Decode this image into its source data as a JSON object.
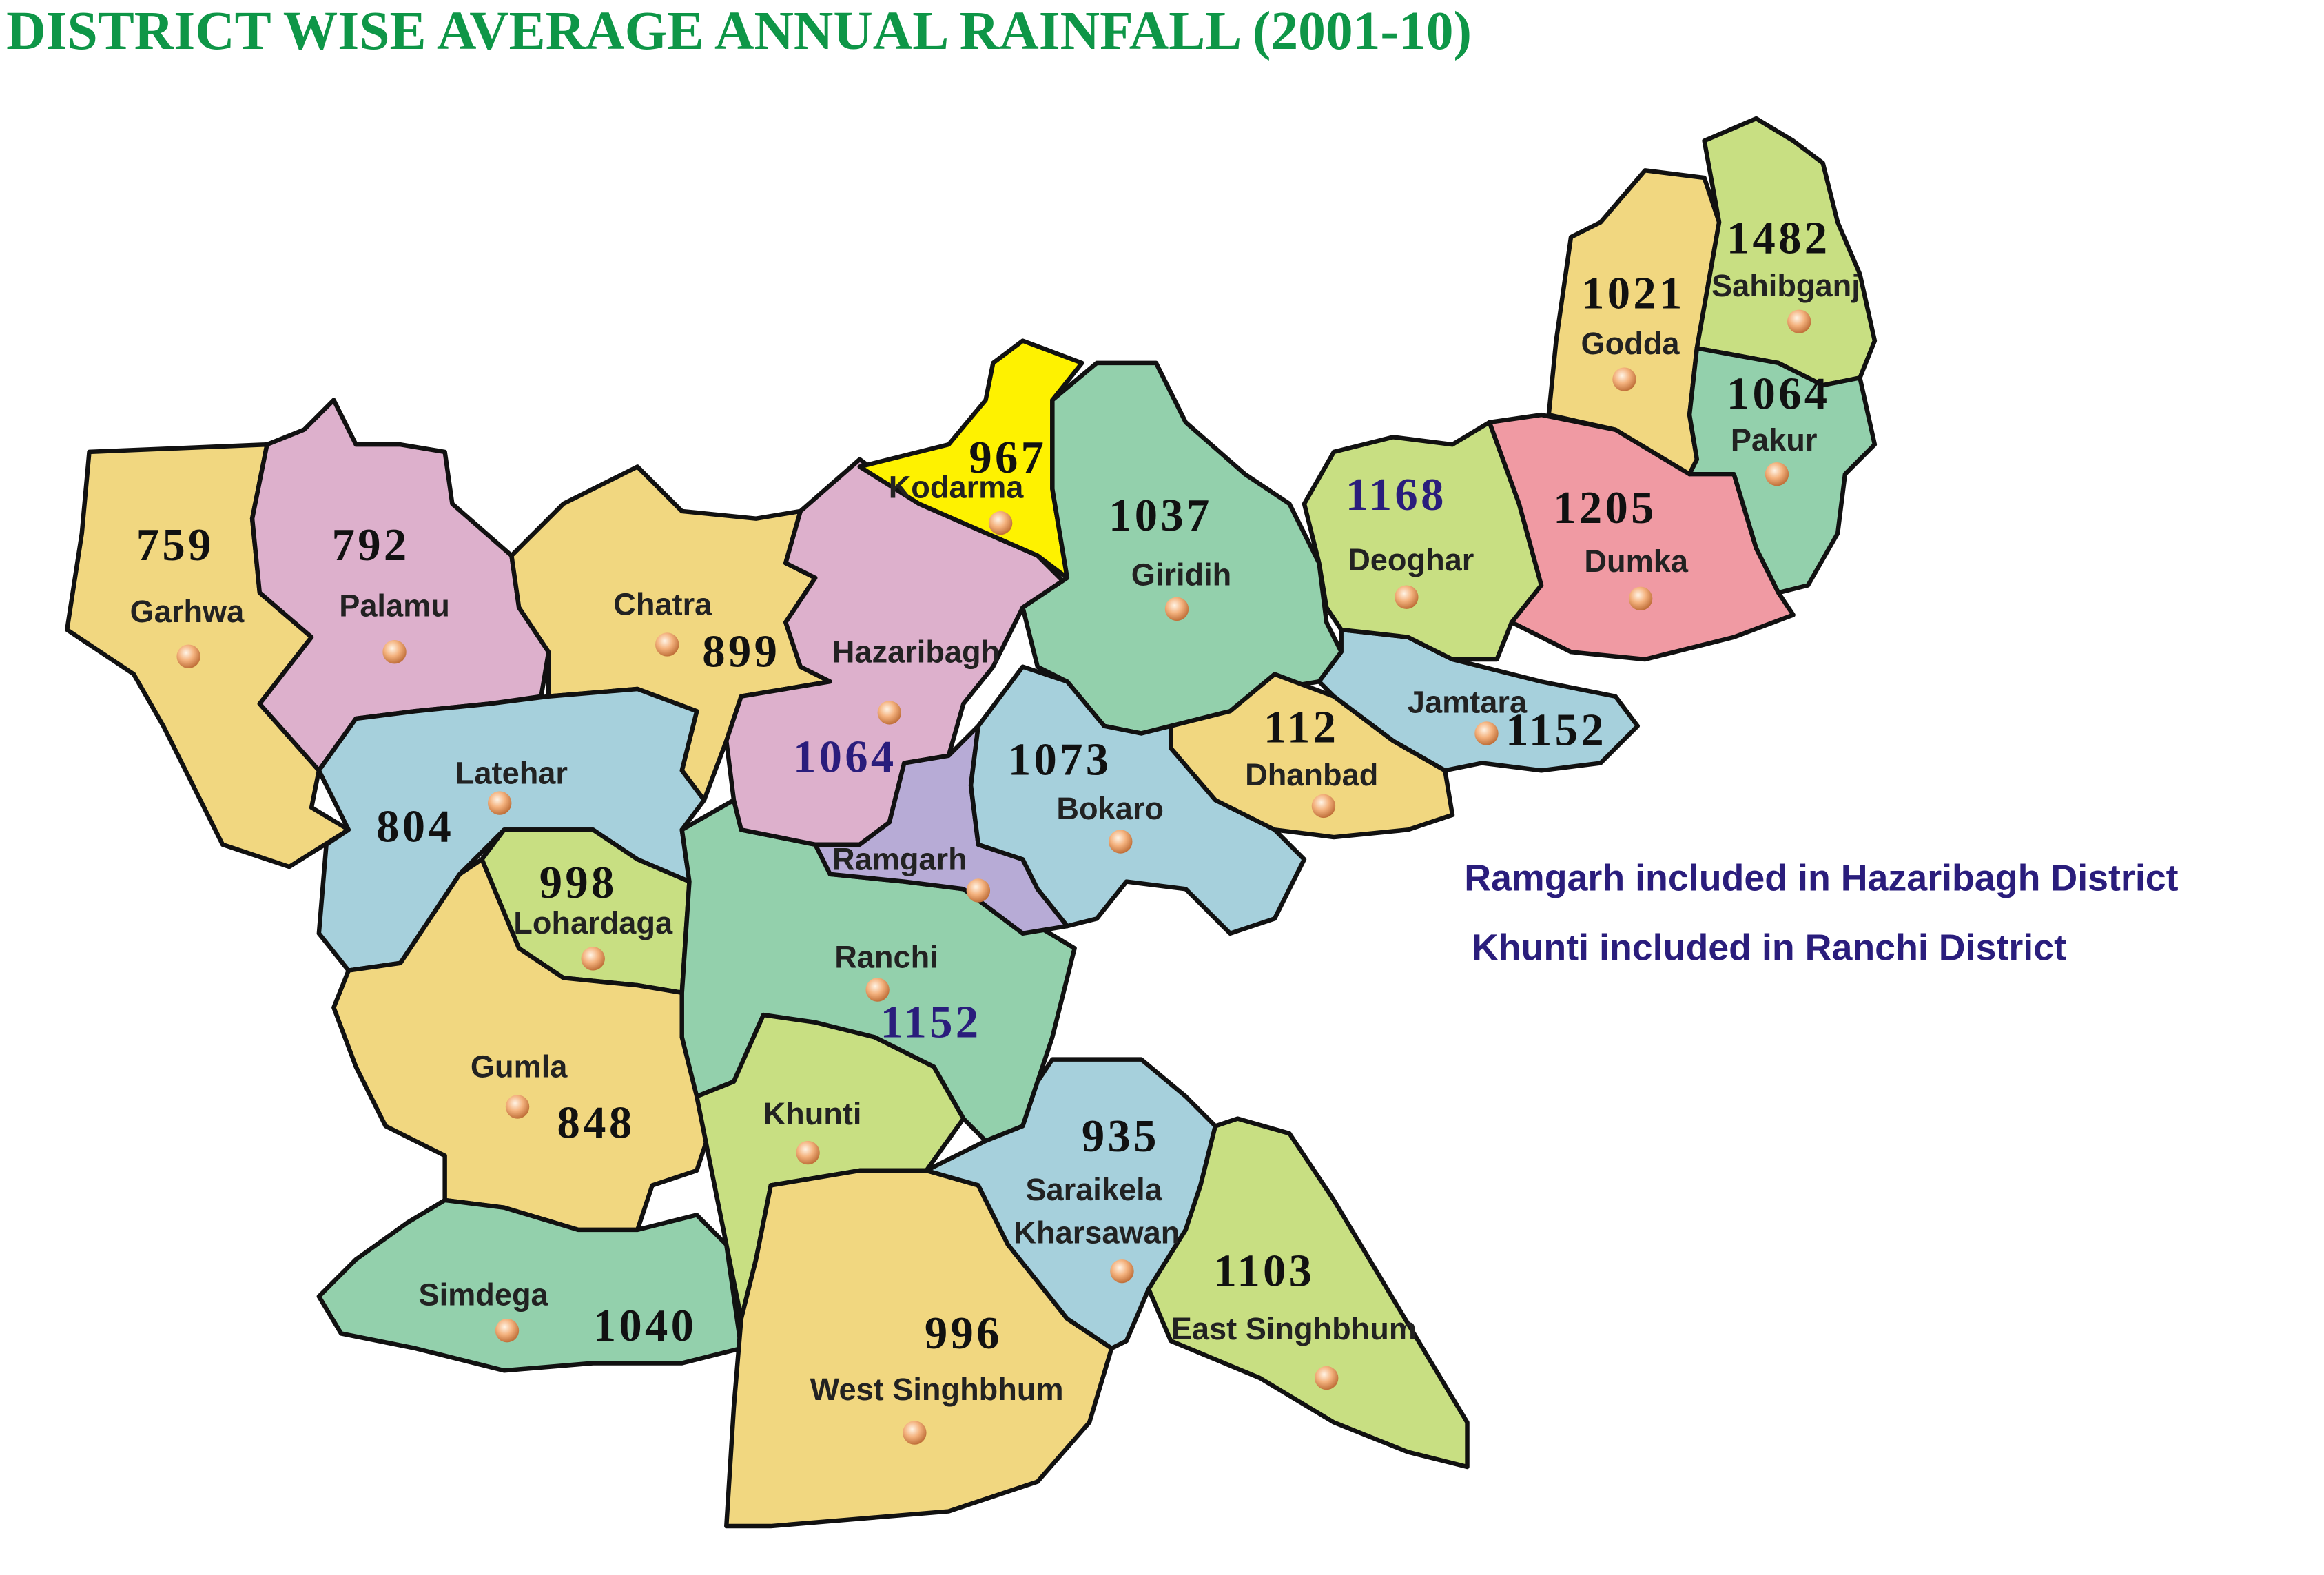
{
  "title": "DISTRICT WISE AVERAGE ANNUAL RAINFALL (2001-10)",
  "districts": [
    {
      "name": "Garhwa",
      "value": 759,
      "fill": "#f1d780",
      "value_color": "#111111"
    },
    {
      "name": "Palamu",
      "value": 792,
      "fill": "#ddb0cc",
      "value_color": "#111111"
    },
    {
      "name": "Chatra",
      "value": 899,
      "fill": "#f1d780",
      "value_color": "#111111"
    },
    {
      "name": "Latehar",
      "value": 804,
      "fill": "#a6d0dc",
      "value_color": "#111111"
    },
    {
      "name": "Lohardaga",
      "value": 998,
      "fill": "#c8df82",
      "value_color": "#111111"
    },
    {
      "name": "Gumla",
      "value": 848,
      "fill": "#f1d780",
      "value_color": "#111111"
    },
    {
      "name": "Simdega",
      "value": 1040,
      "fill": "#93d0ac",
      "value_color": "#111111"
    },
    {
      "name": "Ranchi",
      "value": 1152,
      "fill": "#93d0ac",
      "value_color": "#2a1d7c"
    },
    {
      "name": "Khunti",
      "fill": "#c8df82"
    },
    {
      "name": "West Singhbhum",
      "value": 996,
      "fill": "#f1d780",
      "value_color": "#111111"
    },
    {
      "name": [
        "Saraikela",
        "Kharsawan"
      ],
      "value": 935,
      "fill": "#a6d0dc",
      "value_color": "#111111"
    },
    {
      "name": "East Singhbhum",
      "value": 1103,
      "fill": "#c8df82",
      "value_color": "#111111"
    },
    {
      "name": "Hazaribagh",
      "value": 1064,
      "fill": "#ddb0cc",
      "value_color": "#2a1d7c"
    },
    {
      "name": "Kodarma",
      "value": 967,
      "fill": "#fef200",
      "value_color": "#111111"
    },
    {
      "name": "Ramgarh",
      "fill": "#b7abd6"
    },
    {
      "name": "Giridih",
      "value": 1037,
      "fill": "#93d0ac",
      "value_color": "#111111"
    },
    {
      "name": "Bokaro",
      "value": 1073,
      "fill": "#a6d0dc",
      "value_color": "#111111"
    },
    {
      "name": "Dhanbad",
      "value": 112,
      "fill": "#f1d780",
      "value_color": "#111111"
    },
    {
      "name": "Jamtara",
      "value": 1152,
      "fill": "#a6d0dc",
      "value_color": "#111111"
    },
    {
      "name": "Deoghar",
      "value": 1168,
      "fill": "#c8df82",
      "value_color": "#2a1d7c"
    },
    {
      "name": "Dumka",
      "value": 1205,
      "fill": "#f09aa3",
      "value_color": "#111111"
    },
    {
      "name": "Godda",
      "value": 1021,
      "fill": "#f1d780",
      "value_color": "#111111"
    },
    {
      "name": "Sahibganj",
      "value": 1482,
      "fill": "#c8df82",
      "value_color": "#111111"
    },
    {
      "name": "Pakur",
      "value": 1064,
      "fill": "#93d0ac",
      "value_color": "#111111"
    }
  ],
  "notes": [
    "Ramgarh included in Hazaribagh District",
    "Khunti included in Ranchi District"
  ]
}
